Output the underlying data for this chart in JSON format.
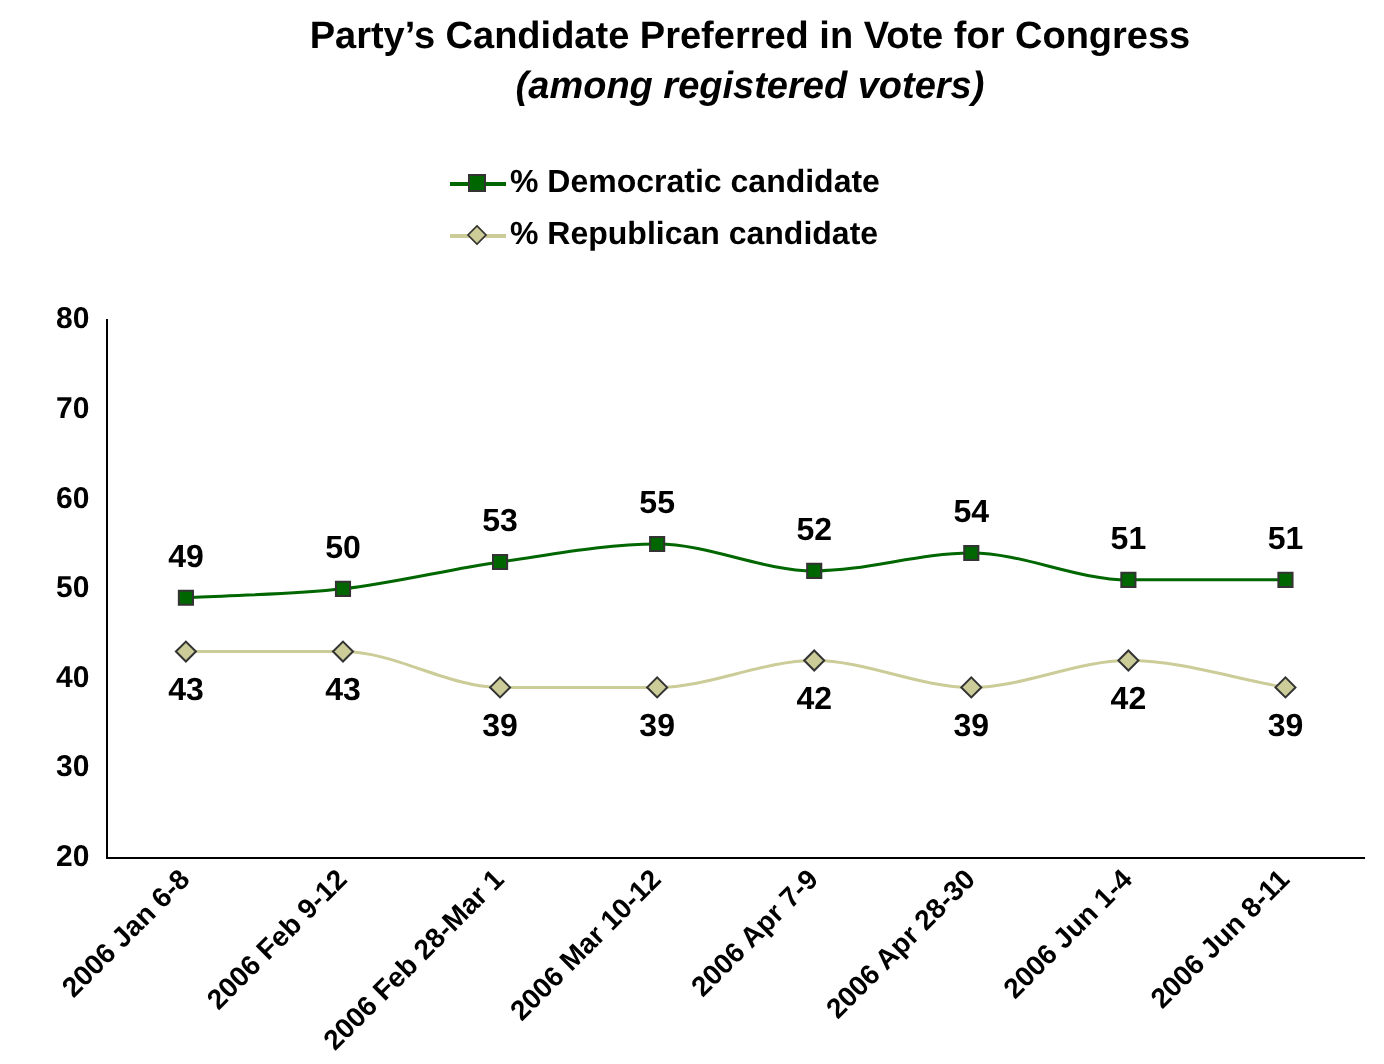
{
  "chart_data": {
    "type": "line",
    "title": "Party’s Candidate Preferred in Vote for Congress",
    "subtitle": "(among registered voters)",
    "categories": [
      "2006 Jan 6-8",
      "2006 Feb 9-12",
      "2006 Feb 28-Mar 1",
      "2006 Mar 10-12",
      "2006 Apr 7-9",
      "2006 Apr 28-30",
      "2006 Jun 1-4",
      "2006 Jun 8-11"
    ],
    "series": [
      {
        "name": "% Democratic candidate",
        "color": "#006600",
        "marker": "square",
        "values": [
          49,
          50,
          53,
          55,
          52,
          54,
          51,
          51
        ]
      },
      {
        "name": "% Republican candidate",
        "color": "#cccc99",
        "marker": "diamond",
        "values": [
          43,
          43,
          39,
          39,
          42,
          39,
          42,
          39
        ]
      }
    ],
    "ylim": [
      20,
      80
    ],
    "yticks": [
      20,
      30,
      40,
      50,
      60,
      70,
      80
    ],
    "grid": false,
    "legend": "top",
    "data_labels": true
  }
}
